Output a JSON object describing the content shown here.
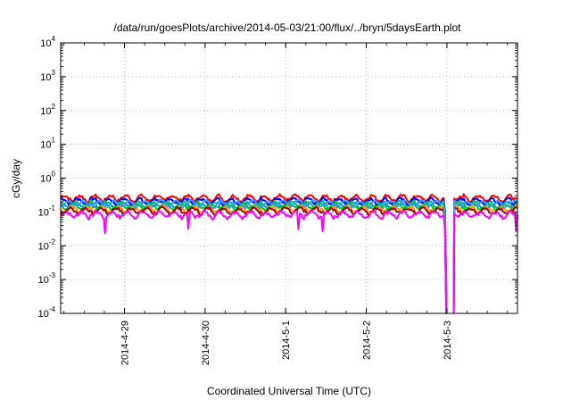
{
  "chart_data": {
    "type": "line",
    "title": "/data/run/goesPlots/archive/2014-05-03/21:00/flux/../bryn/5daysEarth.plot",
    "xlabel": "Coordinated Universal Time (UTC)",
    "ylabel": "cGy/day",
    "y_scale": "log",
    "ylim": [
      0.0001,
      10000
    ],
    "xlim": [
      "2014-04-28 05:00",
      "2014-05-03 21:00"
    ],
    "grid": true,
    "x_ticks": [
      "2014-4-29",
      "2014-4-30",
      "2014-5-1",
      "2014-5-2",
      "2014-5-3"
    ],
    "y_ticks": [
      {
        "base": "10",
        "exp": "-4"
      },
      {
        "base": "10",
        "exp": "-3"
      },
      {
        "base": "10",
        "exp": "-2"
      },
      {
        "base": "10",
        "exp": "-1"
      },
      {
        "base": "10",
        "exp": "0"
      },
      {
        "base": "10",
        "exp": "1"
      },
      {
        "base": "10",
        "exp": "2"
      },
      {
        "base": "10",
        "exp": "3"
      },
      {
        "base": "10",
        "exp": "4"
      }
    ],
    "gap": {
      "start": "2014-05-02 23:50",
      "end": "2014-05-03 02:00"
    },
    "series": [
      {
        "color": "#ff0000",
        "level": 0.26
      },
      {
        "color": "#0000ff",
        "level": 0.21
      },
      {
        "color": "#00aaaa",
        "level": 0.17
      },
      {
        "color": "#00cc00",
        "level": 0.15
      },
      {
        "color": "#ff9900",
        "level": 0.12
      },
      {
        "color": "#a00000",
        "level": 0.11
      },
      {
        "color": "#3399ff",
        "level": 0.18
      },
      {
        "color": "#ff00ff",
        "level": 0.085
      }
    ]
  }
}
